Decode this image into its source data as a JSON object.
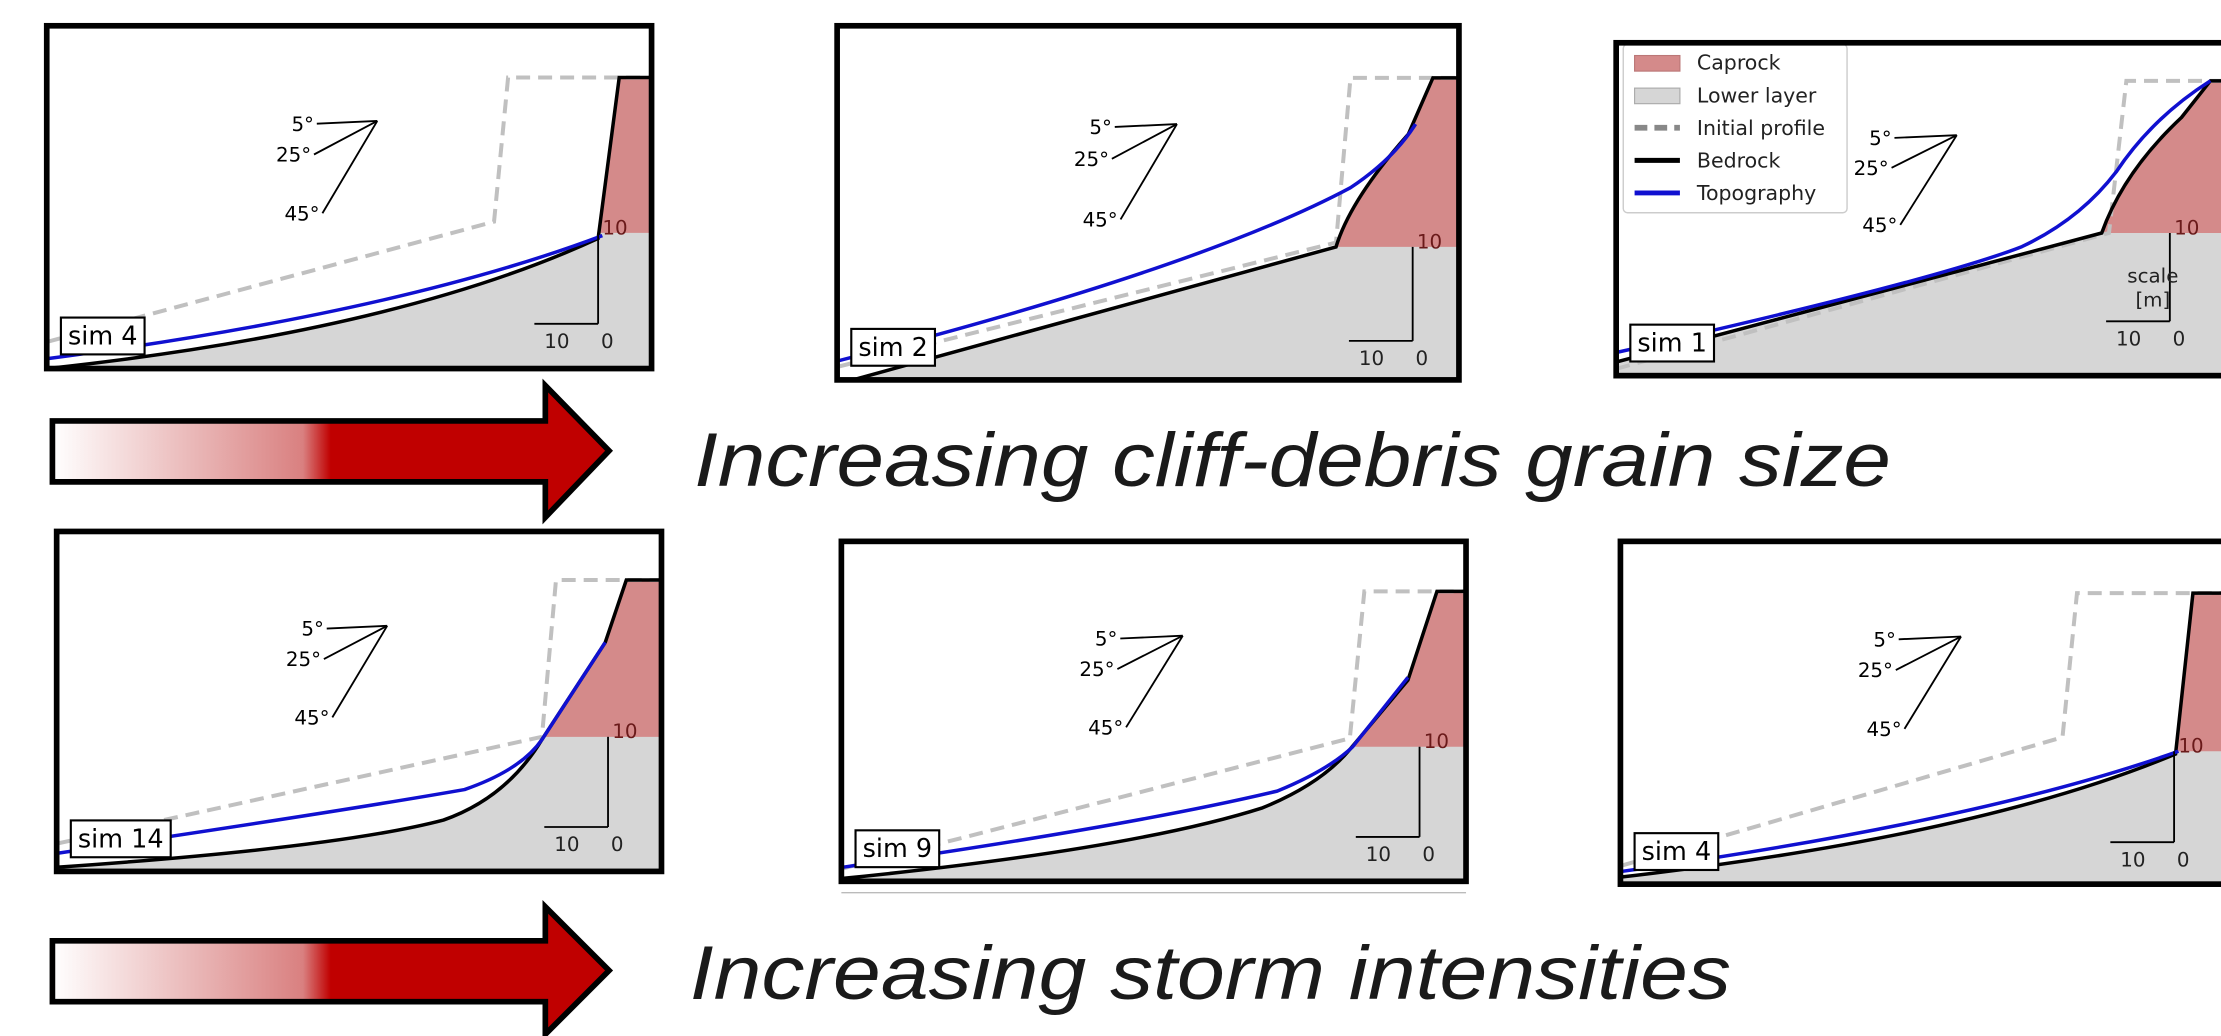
{
  "legend": [
    "Caprock",
    "Lower layer",
    "Initial profile",
    "Bedrock",
    "Topography"
  ],
  "panels": [
    {
      "label": "sim 4"
    },
    {
      "label": "sim 2"
    },
    {
      "label": "sim 1"
    },
    {
      "label": "sim 14"
    },
    {
      "label": "sim 9"
    },
    {
      "label": "sim 4"
    }
  ],
  "angle_labels": [
    "5°",
    "25°",
    "45°"
  ],
  "scale_labels": {
    "cap": "10",
    "horizontal": "10",
    "zero": "0"
  },
  "scale_title": [
    "scale",
    "[m]"
  ],
  "captions": [
    "Increasing cliff-debris grain size",
    "Increasing storm intensities"
  ]
}
